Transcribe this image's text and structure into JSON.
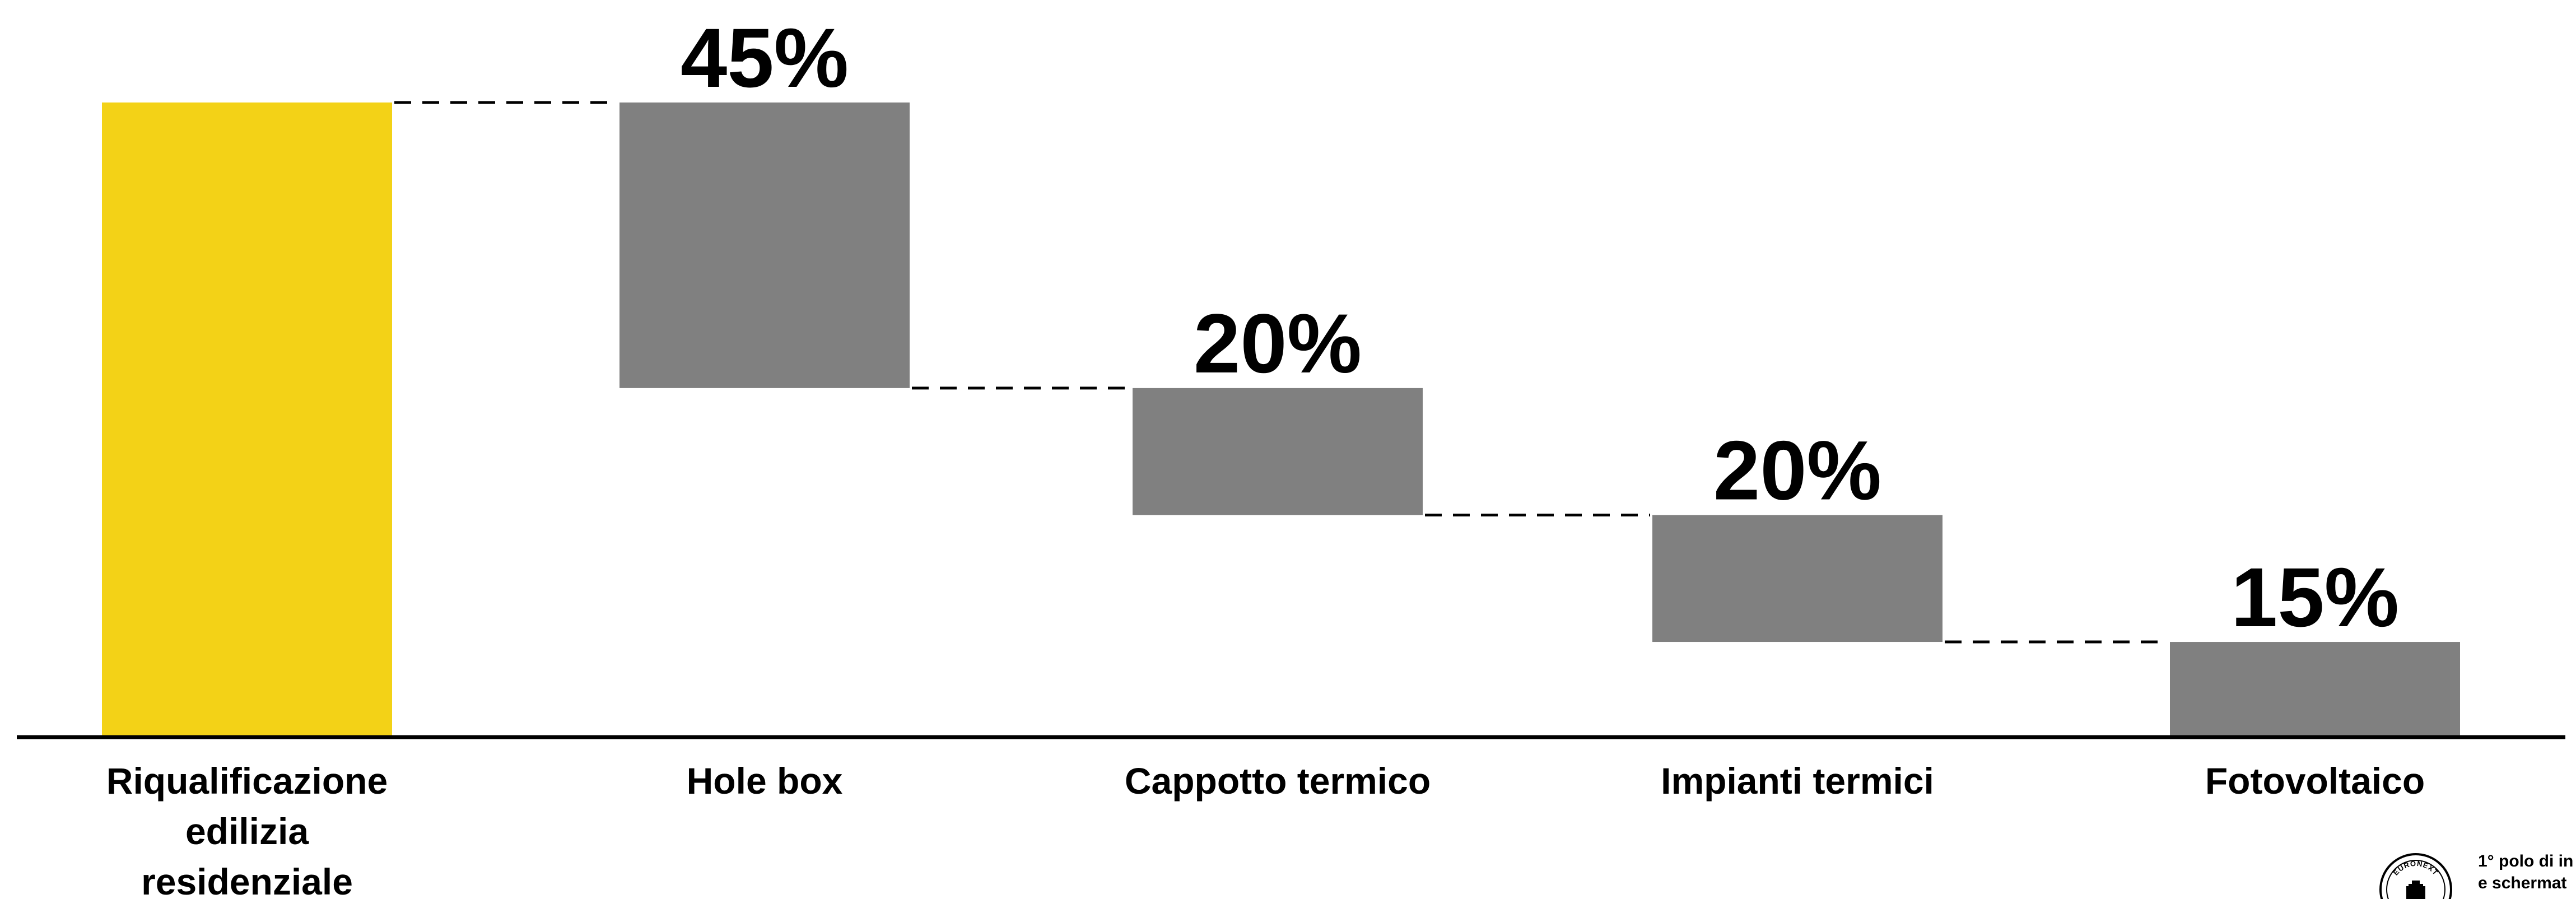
{
  "chart_data": {
    "type": "bar",
    "subtype": "waterfall",
    "title": "",
    "xlabel": "",
    "ylabel": "",
    "ylim": [
      0,
      100
    ],
    "categories": [
      [
        "Riqualificazione",
        "edilizia",
        "residenziale"
      ],
      [
        "Hole box"
      ],
      [
        "Cappotto termico"
      ],
      [
        "Impianti termici"
      ],
      [
        "Fotovoltaico"
      ]
    ],
    "values": [
      100,
      45,
      20,
      20,
      15
    ],
    "value_labels": [
      "",
      "45%",
      "20%",
      "20%",
      "15%"
    ],
    "kind": [
      "total",
      "decrease",
      "decrease",
      "decrease",
      "decrease"
    ],
    "colors": {
      "total": "#F3D217",
      "step": "#808080",
      "connector": "#000000",
      "axis": "#000000"
    },
    "grid": false,
    "legend": "none"
  },
  "footer": {
    "seal_text": "EURONEXT",
    "logo_line1": "1° polo di in",
    "logo_line2": "e schermat"
  }
}
